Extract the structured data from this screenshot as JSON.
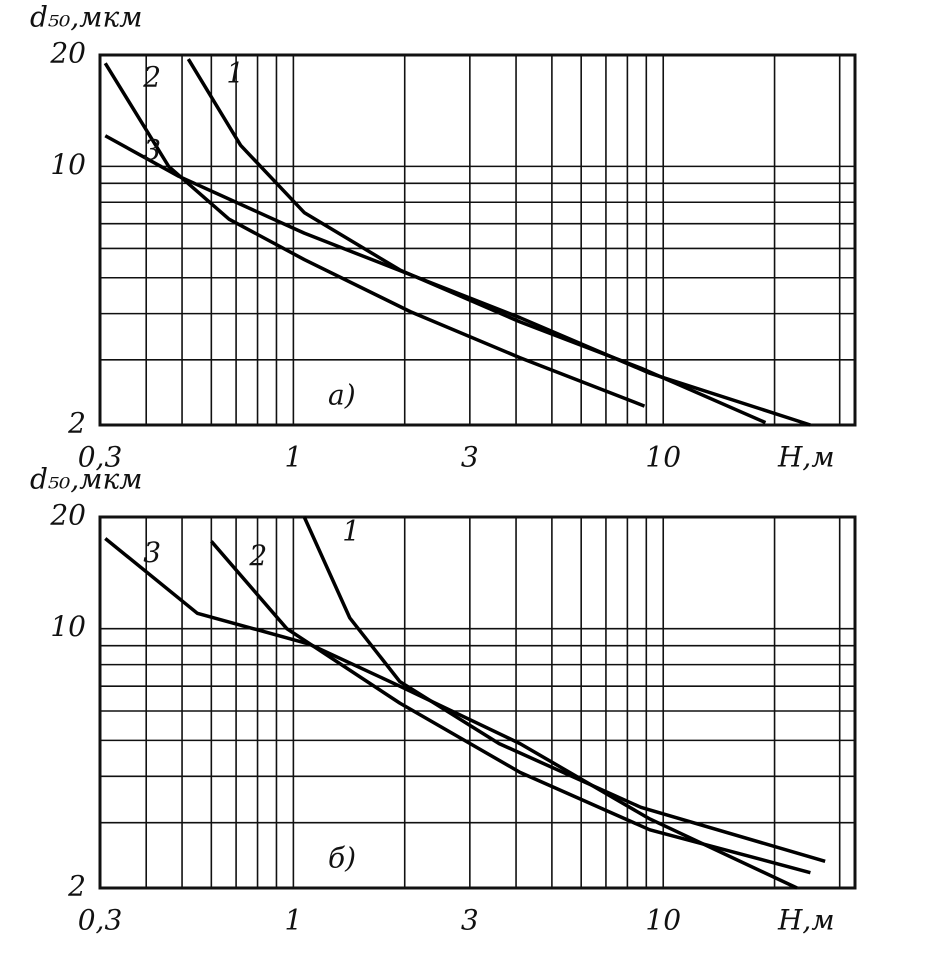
{
  "chart_data": [
    {
      "type": "line",
      "xscale": "log",
      "yscale": "log",
      "grid": true,
      "ylabel": "d₅₀,мкм",
      "xlabel": "H,м",
      "annotation": "а)",
      "xlim": [
        0.3,
        33
      ],
      "ylim": [
        2,
        20
      ],
      "xticks": [
        {
          "value": 0.3,
          "label": "0,3"
        },
        1,
        3,
        10
      ],
      "yticks": [
        2,
        10,
        20
      ],
      "xgrid": [
        0.4,
        0.5,
        0.6,
        0.7,
        0.8,
        0.9,
        2,
        4,
        5,
        6,
        7,
        8,
        9,
        20,
        30
      ],
      "ygrid": [
        3,
        4,
        5,
        6,
        7,
        8,
        9
      ],
      "series": [
        {
          "name": "1",
          "color": "#000000",
          "x": [
            0.52,
            0.72,
            1.07,
            1.94,
            4.1,
            8.7,
            18.9
          ],
          "values": [
            19.5,
            11.4,
            7.5,
            5.25,
            3.8,
            2.85,
            2.03
          ]
        },
        {
          "name": "2",
          "color": "#000000",
          "x": [
            0.31,
            0.46,
            0.67,
            1.07,
            2.07,
            4.1,
            8.9
          ],
          "values": [
            19,
            10,
            7.2,
            5.6,
            4.05,
            3.04,
            2.25
          ]
        },
        {
          "name": "3",
          "color": "#000000",
          "x": [
            0.31,
            0.49,
            1.07,
            2.07,
            4.1,
            9.2,
            25
          ],
          "values": [
            12.1,
            9.4,
            6.6,
            5.1,
            3.9,
            2.76,
            2.0
          ]
        }
      ]
    },
    {
      "type": "line",
      "xscale": "log",
      "yscale": "log",
      "grid": true,
      "ylabel": "d₅₀,мкм",
      "xlabel": "H,м",
      "annotation": "б)",
      "xlim": [
        0.3,
        33
      ],
      "ylim": [
        2,
        20
      ],
      "xticks": [
        {
          "value": 0.3,
          "label": "0,3"
        },
        1,
        3,
        10
      ],
      "yticks": [
        2,
        10,
        20
      ],
      "xgrid": [
        0.4,
        0.5,
        0.6,
        0.7,
        0.8,
        0.9,
        2,
        4,
        5,
        6,
        7,
        8,
        9,
        20,
        30
      ],
      "ygrid": [
        3,
        4,
        5,
        6,
        7,
        8,
        9
      ],
      "series": [
        {
          "name": "1",
          "color": "#000000",
          "x": [
            1.07,
            1.42,
            1.94,
            3.6,
            8.7,
            27.4
          ],
          "values": [
            20,
            10.7,
            7.2,
            4.9,
            3.3,
            2.36
          ]
        },
        {
          "name": "2",
          "color": "#000000",
          "x": [
            0.6,
            0.96,
            1.94,
            4.1,
            9.2,
            25
          ],
          "values": [
            17.2,
            10,
            6.3,
            4.1,
            2.87,
            2.2
          ]
        },
        {
          "name": "3",
          "color": "#000000",
          "x": [
            0.31,
            0.55,
            1.1,
            1.94,
            4.1,
            9.2,
            23
          ],
          "values": [
            17.5,
            11,
            9.1,
            7.0,
            4.9,
            3.07,
            2.0
          ]
        }
      ]
    }
  ]
}
